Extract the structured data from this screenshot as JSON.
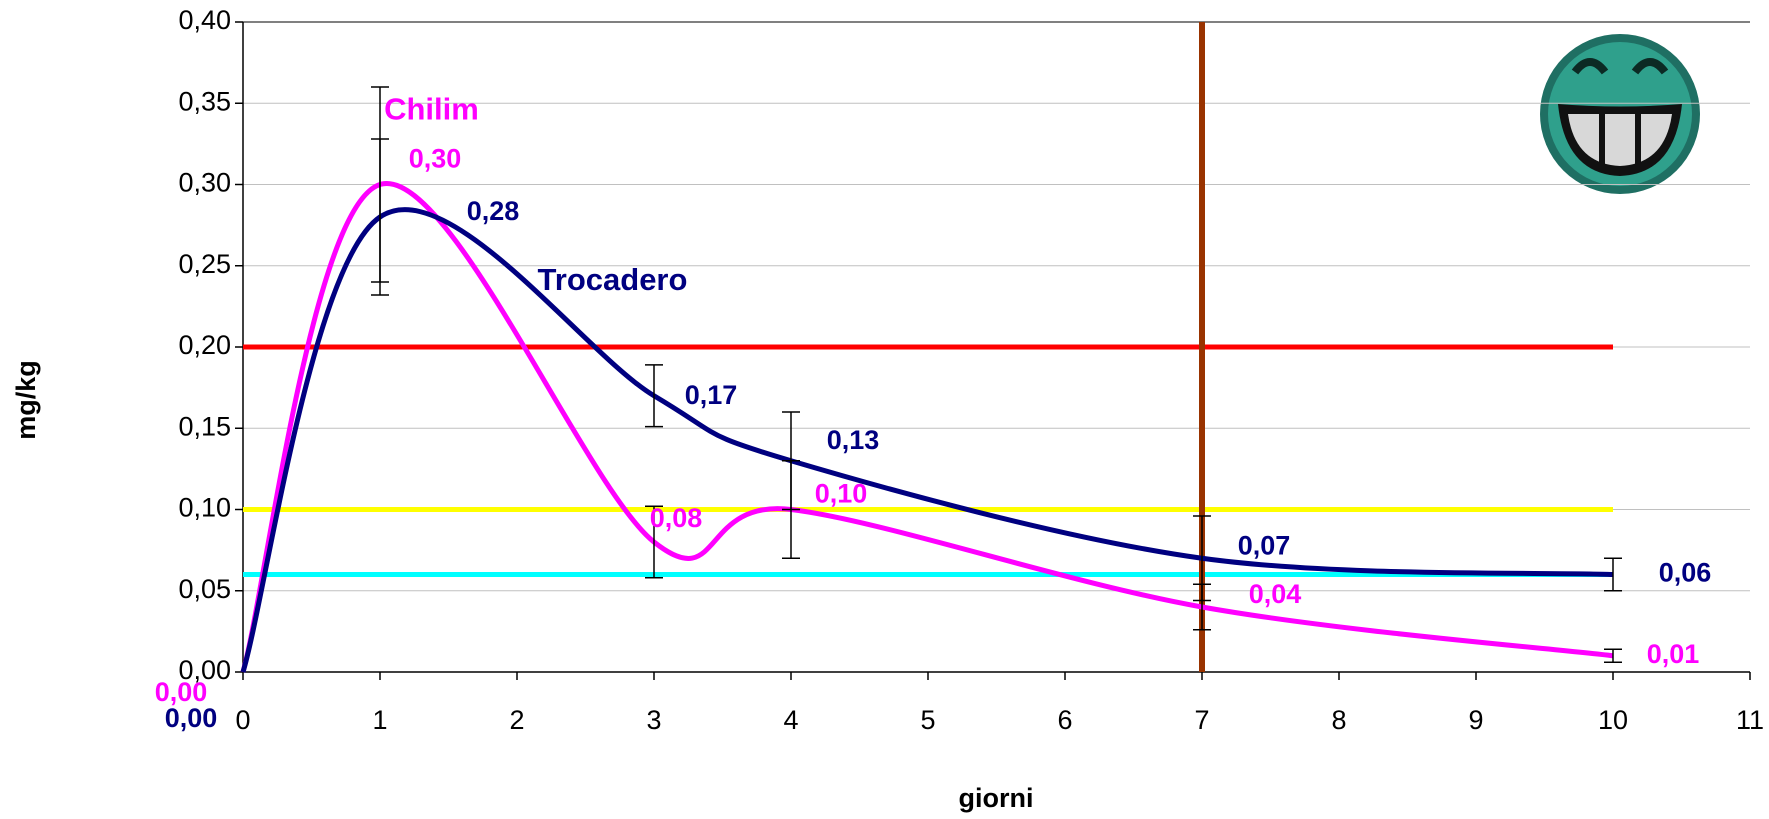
{
  "chart_data": {
    "type": "line",
    "x_label": "giorni",
    "y_label": "mg/kg",
    "xlim": [
      0,
      11
    ],
    "xticks": [
      0,
      1,
      2,
      3,
      4,
      5,
      6,
      7,
      8,
      9,
      10,
      11
    ],
    "ylim": [
      0,
      0.4
    ],
    "yticks": [
      {
        "value": 0,
        "label": "0,00"
      },
      {
        "value": 0.05,
        "label": "0,05"
      },
      {
        "value": 0.1,
        "label": "0,10"
      },
      {
        "value": 0.15,
        "label": "0,15"
      },
      {
        "value": 0.2,
        "label": "0,20"
      },
      {
        "value": 0.25,
        "label": "0,25"
      },
      {
        "value": 0.3,
        "label": "0,30"
      },
      {
        "value": 0.35,
        "label": "0,35"
      },
      {
        "value": 0.4,
        "label": "0,40"
      }
    ],
    "grid": true,
    "x": [
      0,
      1,
      3,
      4,
      7,
      10
    ],
    "series": [
      {
        "name": "Chilim",
        "color": "#ff00ff",
        "values": [
          0,
          0.3,
          0.08,
          0.1,
          0.04,
          0.01
        ],
        "value_labels": [
          "0,00",
          "0,30",
          "0,08",
          "0,10",
          "0,04",
          "0,01"
        ],
        "errors": [
          0,
          0.06,
          0.022,
          0.03,
          0.014,
          0.004
        ]
      },
      {
        "name": "Trocadero",
        "color": "#000080",
        "values": [
          0,
          0.28,
          0.17,
          0.13,
          0.07,
          0.06
        ],
        "value_labels": [
          "0,00",
          "0,28",
          "0,17",
          "0,13",
          "0,07",
          "0,06"
        ],
        "errors": [
          0,
          0.048,
          0.019,
          0.03,
          0.026,
          0.01
        ]
      }
    ],
    "hlines": [
      {
        "value": 0.2,
        "color": "#ff0000"
      },
      {
        "value": 0.1,
        "color": "#ffff00"
      },
      {
        "value": 0.06,
        "color": "#00ffff"
      }
    ],
    "hline_span": [
      0,
      10
    ],
    "vline": {
      "value": 7,
      "color": "#993300"
    }
  }
}
